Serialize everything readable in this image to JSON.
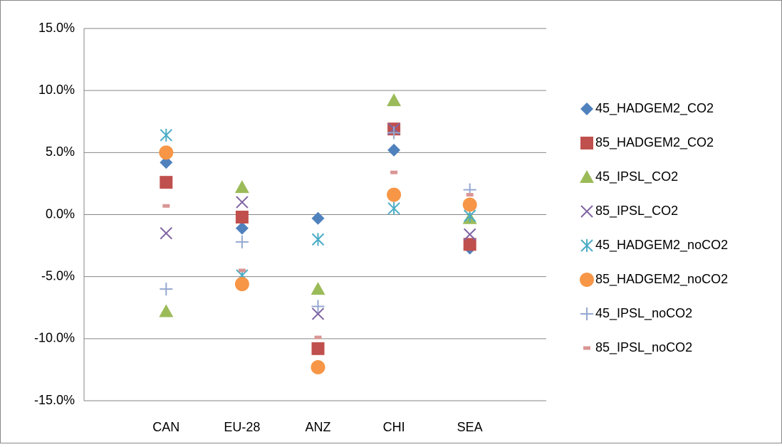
{
  "chart_data": {
    "type": "dot",
    "categories": [
      "CAN",
      "EU-28",
      "ANZ",
      "CHI",
      "SEA"
    ],
    "ylim": [
      -15,
      15
    ],
    "yticks": [
      {
        "value": -15,
        "label": "-15.0%"
      },
      {
        "value": -10,
        "label": "-10.0%"
      },
      {
        "value": -5,
        "label": "-5.0%"
      },
      {
        "value": 0,
        "label": "0.0%"
      },
      {
        "value": 5,
        "label": "5.0%"
      },
      {
        "value": 10,
        "label": "10.0%"
      },
      {
        "value": 15,
        "label": "15.0%"
      }
    ],
    "grid": true,
    "legend": "right",
    "series": [
      {
        "name": "45_HADGEM2_CO2",
        "color": "#4f81bd",
        "marker": "diamond",
        "values": [
          4.2,
          -1.1,
          -0.3,
          5.2,
          -2.7
        ]
      },
      {
        "name": "85_HADGEM2_CO2",
        "color": "#c0504d",
        "marker": "square",
        "values": [
          2.6,
          -0.2,
          -10.8,
          6.9,
          -2.4
        ]
      },
      {
        "name": "45_IPSL_CO2",
        "color": "#9bbb59",
        "marker": "triangle",
        "values": [
          -7.8,
          2.2,
          -6.0,
          9.2,
          -0.3
        ]
      },
      {
        "name": "85_IPSL_CO2",
        "color": "#8064a2",
        "marker": "x",
        "values": [
          -1.5,
          1.0,
          -8.0,
          6.9,
          -1.6
        ]
      },
      {
        "name": "45_HADGEM2_noCO2",
        "color": "#4bacc6",
        "marker": "star",
        "values": [
          6.4,
          -4.9,
          -2.0,
          0.5,
          -0.1
        ]
      },
      {
        "name": "85_HADGEM2_noCO2",
        "color": "#f79646",
        "marker": "circle",
        "values": [
          5.0,
          -5.6,
          -12.3,
          1.6,
          0.8
        ]
      },
      {
        "name": "45_IPSL_noCO2",
        "color": "#95a8d0",
        "marker": "plus",
        "values": [
          -6.0,
          -2.2,
          -7.4,
          6.6,
          2.0
        ]
      },
      {
        "name": "85_IPSL_noCO2",
        "color": "#d99694",
        "marker": "dash",
        "values": [
          0.7,
          -4.5,
          -9.9,
          3.4,
          1.6
        ]
      }
    ]
  }
}
